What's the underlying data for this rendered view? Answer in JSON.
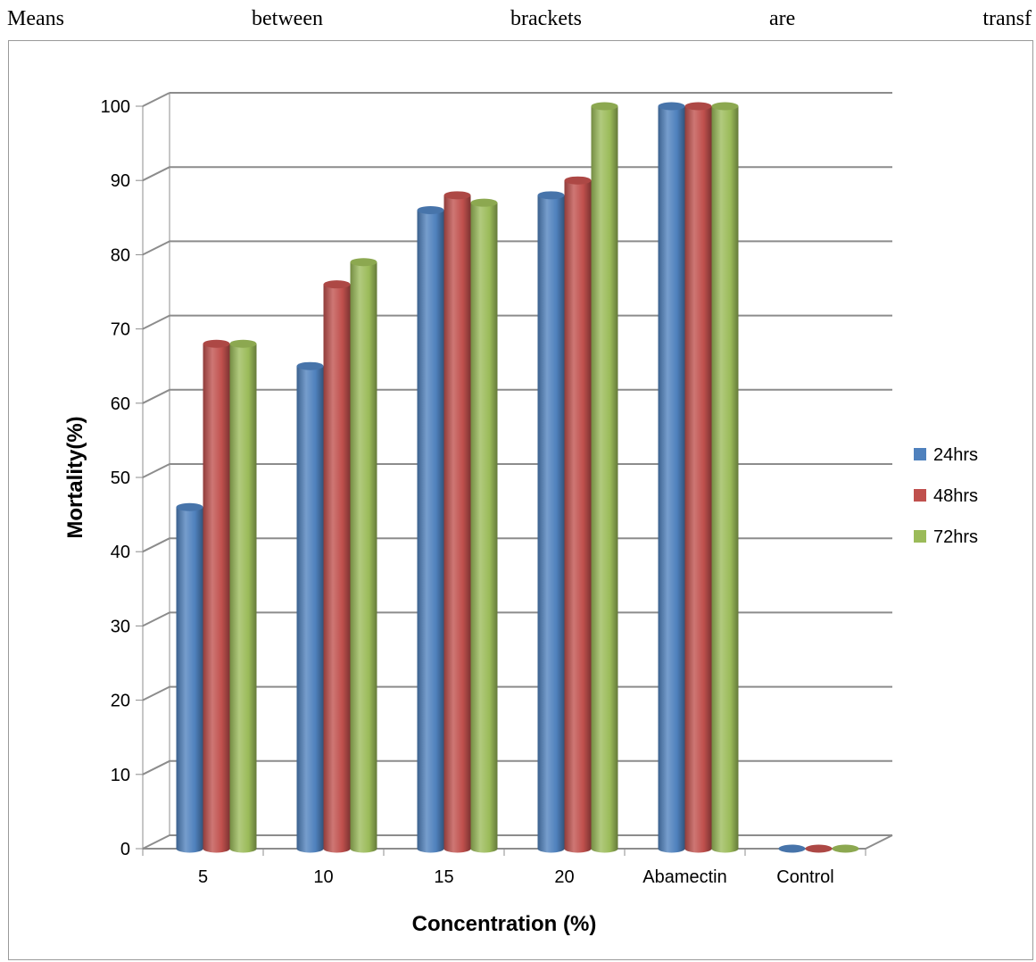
{
  "top_text": {
    "words": [
      "Means",
      "between",
      "brackets",
      "are",
      "transf"
    ]
  },
  "colors": {
    "series": [
      "#4f81bd",
      "#c0504d",
      "#9bbb59"
    ],
    "grid": "#8c8c8c"
  },
  "chart_data": {
    "type": "bar",
    "style": "3d-cylinder",
    "title": "",
    "xlabel": "Concentration (%)",
    "ylabel": "Mortality(%)",
    "ylim": [
      0,
      100
    ],
    "yticks": [
      0,
      10,
      20,
      30,
      40,
      50,
      60,
      70,
      80,
      90,
      100
    ],
    "grid": true,
    "legend_position": "right",
    "categories": [
      "5",
      "10",
      "15",
      "20",
      "Abamectin",
      "Control"
    ],
    "series": [
      {
        "name": "24hrs",
        "values": [
          46,
          65,
          86,
          88,
          100,
          0
        ]
      },
      {
        "name": "48hrs",
        "values": [
          68,
          76,
          88,
          90,
          100,
          0
        ]
      },
      {
        "name": "72hrs",
        "values": [
          68,
          79,
          87,
          100,
          100,
          0
        ]
      }
    ]
  }
}
